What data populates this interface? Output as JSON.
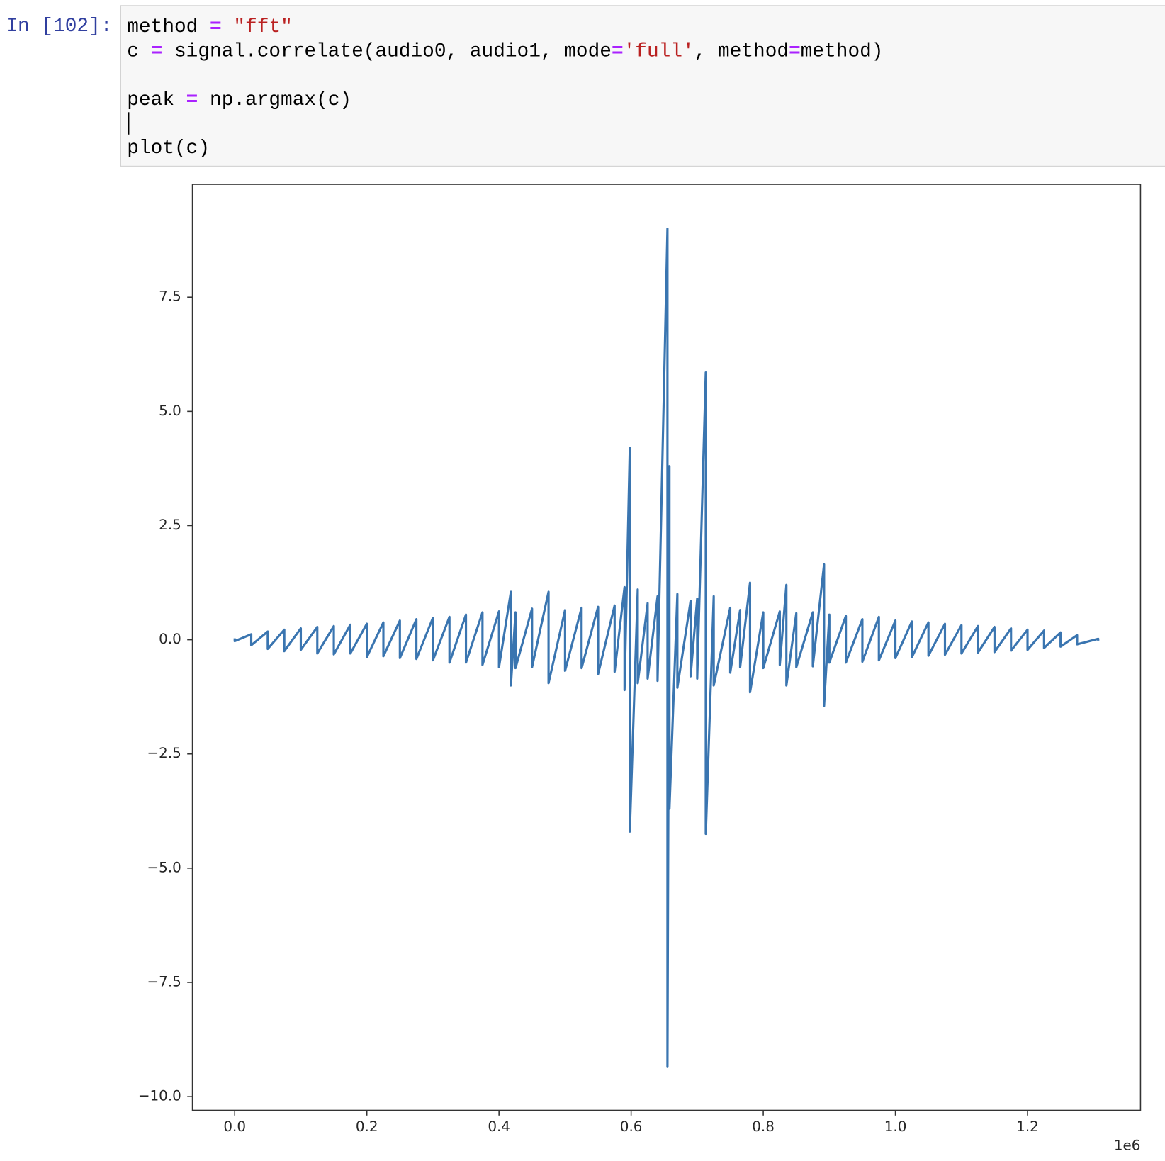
{
  "prompt": "In [102]:",
  "code": {
    "lines": [
      [
        {
          "text": "method ",
          "color": "#000000"
        },
        {
          "text": "=",
          "color": "#aa22ff"
        },
        {
          "text": " ",
          "color": "#000000"
        },
        {
          "text": "\"fft\"",
          "color": "#ba2121"
        }
      ],
      [
        {
          "text": "c ",
          "color": "#000000"
        },
        {
          "text": "=",
          "color": "#aa22ff"
        },
        {
          "text": " signal.correlate(audio0, audio1, mode",
          "color": "#000000"
        },
        {
          "text": "=",
          "color": "#aa22ff"
        },
        {
          "text": "'full'",
          "color": "#ba2121"
        },
        {
          "text": ", method",
          "color": "#000000"
        },
        {
          "text": "=",
          "color": "#aa22ff"
        },
        {
          "text": "method)",
          "color": "#000000"
        }
      ],
      [],
      [
        {
          "text": "peak ",
          "color": "#000000"
        },
        {
          "text": "=",
          "color": "#aa22ff"
        },
        {
          "text": " np.argmax(c)",
          "color": "#000000"
        }
      ],
      [],
      [
        {
          "text": "plot(c)",
          "color": "#000000"
        }
      ]
    ]
  },
  "chart_data": {
    "type": "line",
    "x_offset_label": "1e6",
    "xlim": [
      -0.064,
      1.371
    ],
    "ylim": [
      -10.3,
      9.97
    ],
    "xticks": [
      {
        "value": 0,
        "label": "0.0"
      },
      0.2,
      0.4,
      0.6,
      0.8,
      {
        "value": 1,
        "label": "1.0"
      },
      1.2
    ],
    "yticks": [
      {
        "value": -10,
        "label": "−10.0"
      },
      {
        "value": -7.5,
        "label": "−7.5"
      },
      {
        "value": -5,
        "label": "−5.0"
      },
      {
        "value": -2.5,
        "label": "−2.5"
      },
      {
        "value": 0,
        "label": "0.0"
      },
      2.5,
      {
        "value": 5,
        "label": "5.0"
      },
      7.5
    ],
    "grid": false,
    "x": [
      0,
      0,
      0.025,
      0.025,
      0.05,
      0.05,
      0.075,
      0.075,
      0.1,
      0.1,
      0.125,
      0.125,
      0.15,
      0.15,
      0.175,
      0.175,
      0.2,
      0.2,
      0.225,
      0.225,
      0.25,
      0.25,
      0.275,
      0.275,
      0.3,
      0.3,
      0.325,
      0.325,
      0.35,
      0.35,
      0.375,
      0.375,
      0.4,
      0.4,
      0.418,
      0.418,
      0.425,
      0.425,
      0.45,
      0.45,
      0.475,
      0.475,
      0.5,
      0.5,
      0.525,
      0.525,
      0.55,
      0.55,
      0.575,
      0.575,
      0.59,
      0.59,
      0.598,
      0.598,
      0.61,
      0.61,
      0.625,
      0.625,
      0.64,
      0.64,
      0.655,
      0.655,
      0.658,
      0.658,
      0.67,
      0.67,
      0.69,
      0.69,
      0.7,
      0.7,
      0.713,
      0.713,
      0.725,
      0.725,
      0.75,
      0.75,
      0.765,
      0.765,
      0.78,
      0.78,
      0.8,
      0.8,
      0.825,
      0.825,
      0.835,
      0.835,
      0.85,
      0.85,
      0.875,
      0.875,
      0.892,
      0.892,
      0.9,
      0.9,
      0.925,
      0.925,
      0.95,
      0.95,
      0.975,
      0.975,
      1,
      1,
      1.025,
      1.025,
      1.05,
      1.05,
      1.075,
      1.075,
      1.1,
      1.1,
      1.125,
      1.125,
      1.15,
      1.15,
      1.175,
      1.175,
      1.2,
      1.2,
      1.225,
      1.225,
      1.25,
      1.25,
      1.275,
      1.275,
      1.307,
      1.307
    ],
    "series": [
      {
        "color": "#3a75b0",
        "values": [
          0.03,
          -0.03,
          0.12,
          -0.12,
          0.18,
          -0.2,
          0.22,
          -0.25,
          0.25,
          -0.22,
          0.28,
          -0.3,
          0.3,
          -0.32,
          0.33,
          -0.3,
          0.35,
          -0.38,
          0.38,
          -0.36,
          0.42,
          -0.4,
          0.45,
          -0.42,
          0.48,
          -0.45,
          0.5,
          -0.5,
          0.55,
          -0.5,
          0.6,
          -0.55,
          0.62,
          -0.6,
          1.05,
          -1.0,
          0.6,
          -0.62,
          0.68,
          -0.6,
          1.05,
          -0.95,
          0.65,
          -0.68,
          0.7,
          -0.62,
          0.72,
          -0.75,
          0.75,
          -0.7,
          1.15,
          -1.1,
          4.2,
          -4.2,
          1.1,
          -0.95,
          0.8,
          -0.85,
          0.95,
          -0.9,
          9.0,
          -9.35,
          3.8,
          -3.7,
          1.0,
          -1.05,
          0.85,
          -0.8,
          0.9,
          -0.85,
          5.85,
          -4.25,
          0.95,
          -1.0,
          0.7,
          -0.72,
          0.65,
          -0.6,
          1.25,
          -1.15,
          0.6,
          -0.62,
          0.62,
          -0.55,
          1.2,
          -1.0,
          0.58,
          -0.6,
          0.6,
          -0.58,
          1.65,
          -1.45,
          0.55,
          -0.5,
          0.52,
          -0.5,
          0.45,
          -0.48,
          0.5,
          -0.45,
          0.42,
          -0.4,
          0.4,
          -0.38,
          0.38,
          -0.35,
          0.35,
          -0.33,
          0.32,
          -0.3,
          0.3,
          -0.28,
          0.28,
          -0.27,
          0.25,
          -0.24,
          0.22,
          -0.22,
          0.2,
          -0.18,
          0.16,
          -0.15,
          0.1,
          -0.1,
          0.02,
          -0.02
        ]
      }
    ]
  }
}
